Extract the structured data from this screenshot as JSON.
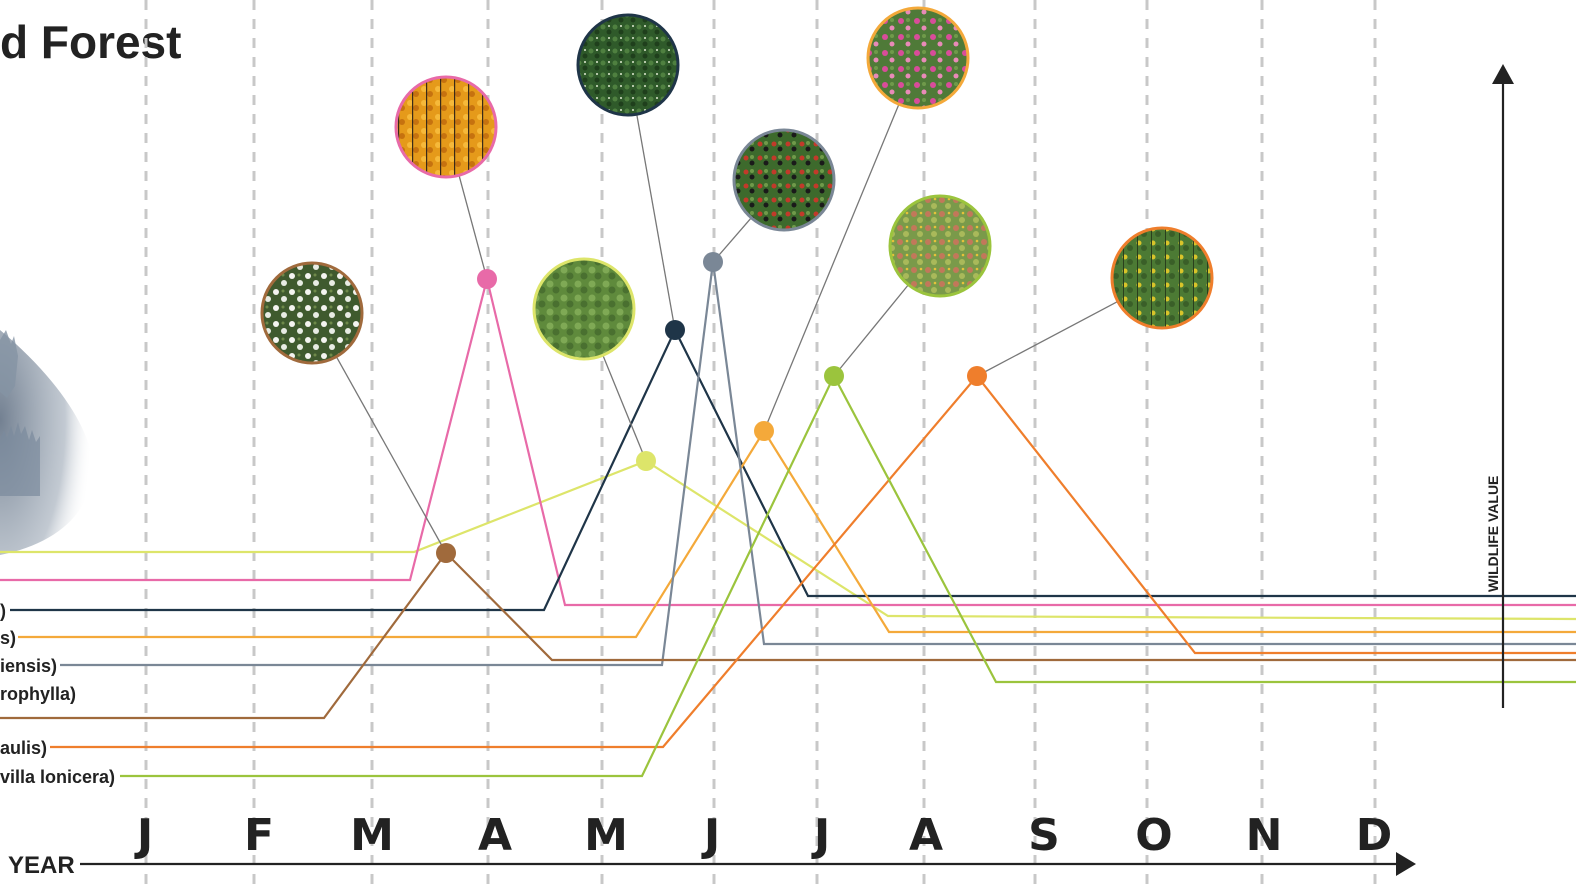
{
  "title": "d Forest",
  "x_axis_label": "YEAR",
  "y_axis_label": "WILDLIFE VALUE",
  "months": [
    "J",
    "F",
    "M",
    "A",
    "M",
    "J",
    "J",
    "A",
    "S",
    "O",
    "N",
    "D"
  ],
  "series_labels": [
    {
      "text": ")",
      "color": "#1f3548"
    },
    {
      "text": "s)",
      "color": "#f4a93a"
    },
    {
      "text": "iensis)",
      "color": "#7a8796"
    },
    {
      "text": "rophylla)",
      "color": "#a06a3c"
    },
    {
      "text": "aulis)",
      "color": "#ef7e2c"
    },
    {
      "text": "villa lonicera)",
      "color": "#9bc43d"
    }
  ],
  "species": [
    {
      "color": "#a06a3c",
      "photo": "white-flowers-photo"
    },
    {
      "color": "#e86aa8",
      "photo": "orange-autumn-tree-photo"
    },
    {
      "color": "#dde56a",
      "photo": "green-tree-photo"
    },
    {
      "color": "#1f3548",
      "photo": "dark-green-shrub-photo"
    },
    {
      "color": "#7a8796",
      "photo": "berries-photo"
    },
    {
      "color": "#f4a93a",
      "photo": "pink-flowers-photo"
    },
    {
      "color": "#9bc43d",
      "photo": "red-green-shrub-photo"
    },
    {
      "color": "#ef7e2c",
      "photo": "yellow-flower-spike-photo"
    }
  ]
}
